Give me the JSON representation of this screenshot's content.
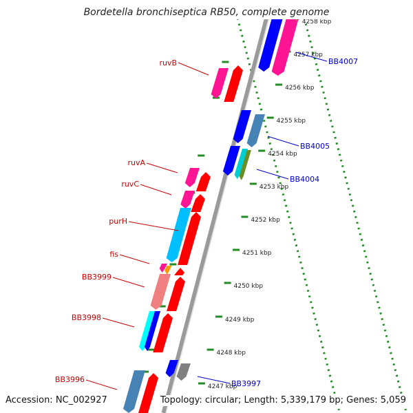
{
  "title": "Bordetella bronchiseptica RB50, complete genome",
  "accession": "Accession: NC_002927",
  "summary": "Topology: circular; Length: 5,339,179 bp; Genes: 5,059",
  "scale_labels": [
    "4258 kbp",
    "4257 kbp",
    "4256 kbp",
    "4255 kbp",
    "4254 kbp",
    "4253 kbp",
    "4252 kbp",
    "4251 kbp",
    "4250 kbp",
    "4249 kbp",
    "4248 kbp",
    "4247 kbp"
  ],
  "left_genes": [
    {
      "label": "ruvB",
      "color": "#ff1493"
    },
    {
      "label": "ruvA",
      "color": "#ff1493"
    },
    {
      "label": "ruvC",
      "color": "#ff1493"
    },
    {
      "label": "purH",
      "color": "#00bfff"
    },
    {
      "label": "fis",
      "color": "#ff1493"
    },
    {
      "label": "BB3999",
      "color": "#f08080"
    },
    {
      "label": "BB3998",
      "color": "#00bfff"
    },
    {
      "label": "BB3996",
      "color": "#4682b4"
    }
  ],
  "right_genes": [
    {
      "label": "BB4007",
      "color": "#0000ff"
    },
    {
      "label": "BB4005",
      "color": "#4682b4"
    },
    {
      "label": "BB4004",
      "color": "#00ced1"
    },
    {
      "label": "BB3997",
      "color": "#808080"
    }
  ],
  "colors": {
    "label_red": "#cc0000",
    "label_blue": "#0000cc",
    "ruler_dots": "#228b22",
    "backbone": "#808080",
    "arrow_red": "#ff0000"
  }
}
